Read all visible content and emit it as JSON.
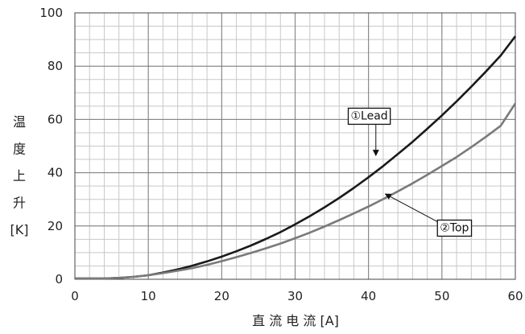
{
  "chart_data": {
    "type": "line",
    "xlabel": "直 流 电 流 [A]",
    "ylabel_chars": [
      "温",
      "度",
      "上",
      "升",
      "[K]"
    ],
    "xlim": [
      0,
      60
    ],
    "ylim": [
      0,
      100
    ],
    "x_ticks": [
      0,
      10,
      20,
      30,
      40,
      50,
      60
    ],
    "y_ticks": [
      0,
      20,
      40,
      60,
      80,
      100
    ],
    "minor_x_step": 2,
    "minor_y_step": 5,
    "grid": true,
    "series": [
      {
        "name": "①Lead",
        "color": "#1a1a1a",
        "x": [
          0,
          4,
          6,
          8,
          10,
          12,
          14,
          16,
          18,
          20,
          22,
          24,
          26,
          28,
          30,
          32,
          34,
          36,
          38,
          40,
          42,
          44,
          46,
          48,
          50,
          52,
          54,
          56,
          58,
          60
        ],
        "y": [
          0.3,
          0.3,
          0.5,
          0.9,
          1.5,
          2.5,
          3.7,
          5.1,
          6.7,
          8.5,
          10.5,
          12.7,
          15.1,
          17.7,
          20.6,
          23.7,
          27.0,
          30.5,
          34.3,
          38.3,
          42.5,
          47.0,
          51.6,
          56.5,
          61.5,
          66.8,
          72.3,
          78.0,
          84.0,
          91.2
        ]
      },
      {
        "name": "②Top",
        "color": "#7a7a7a",
        "x": [
          0,
          4,
          6,
          8,
          10,
          12,
          14,
          16,
          18,
          20,
          22,
          24,
          26,
          28,
          30,
          32,
          34,
          36,
          38,
          40,
          42,
          44,
          46,
          48,
          50,
          52,
          54,
          56,
          58,
          60
        ],
        "y": [
          0.3,
          0.3,
          0.5,
          0.9,
          1.5,
          2.3,
          3.2,
          4.2,
          5.4,
          6.8,
          8.3,
          9.9,
          11.6,
          13.4,
          15.4,
          17.5,
          19.8,
          22.2,
          24.7,
          27.3,
          30.1,
          33.0,
          36.0,
          39.2,
          42.5,
          45.9,
          49.6,
          53.5,
          57.6,
          66.0
        ]
      }
    ],
    "annotations": [
      {
        "text": "①Lead",
        "series": 0,
        "label_x": 40.1,
        "label_y": 61.5,
        "arrow_to_x": 41.0,
        "arrow_to_y": 46.5
      },
      {
        "text": "②Top",
        "series": 1,
        "label_x": 51.7,
        "label_y": 19.5,
        "arrow_to_x": 42.3,
        "arrow_to_y": 32.0
      }
    ]
  }
}
